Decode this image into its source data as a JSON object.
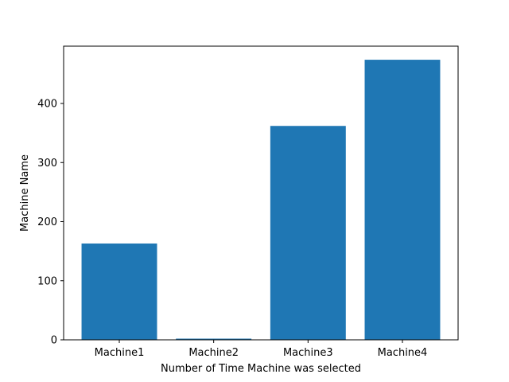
{
  "chart_data": {
    "type": "bar",
    "categories": [
      "Machine1",
      "Machine2",
      "Machine3",
      "Machine4"
    ],
    "values": [
      163,
      2,
      362,
      474
    ],
    "title": "",
    "xlabel": "Number of Time Machine was selected",
    "ylabel": "Machine Name",
    "ylim": [
      0,
      497
    ],
    "yticks": [
      0,
      100,
      200,
      300,
      400
    ],
    "grid": false,
    "legend": "none",
    "bar_color": "#1f77b4"
  }
}
